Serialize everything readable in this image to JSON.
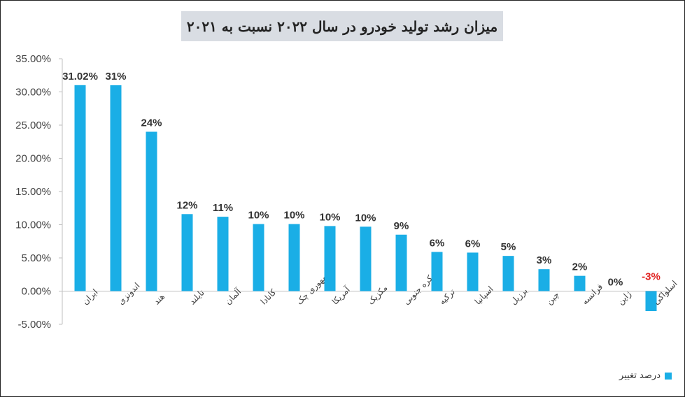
{
  "chart_data": {
    "type": "bar",
    "title": "میزان رشد تولید خودرو در سال ۲۰۲۲ نسبت به ۲۰۲۱",
    "categories": [
      "ایران",
      "اندونزی",
      "هند",
      "تایلند",
      "آلمان",
      "کانادا",
      "جمهوری چک",
      "آمریکا",
      "مکزیک",
      "کره جنوبی",
      "ترکیه",
      "اسپانیا",
      "برزیل",
      "چین",
      "فرانسه",
      "ژاپن",
      "اسلواکی"
    ],
    "series": [
      {
        "name": "درصد تغییر",
        "values": [
          31.02,
          31.0,
          24.0,
          11.6,
          11.2,
          10.1,
          10.1,
          9.8,
          9.7,
          8.5,
          5.9,
          5.8,
          5.3,
          3.3,
          2.3,
          0.0,
          -3.0
        ],
        "labels": [
          "31.02%",
          "31%",
          "24%",
          "12%",
          "11%",
          "10%",
          "10%",
          "10%",
          "10%",
          "9%",
          "6%",
          "6%",
          "5%",
          "3%",
          "2%",
          "0%",
          "-3%"
        ]
      }
    ],
    "ylim": [
      -5,
      35
    ],
    "yticks": [
      35,
      30,
      25,
      20,
      15,
      10,
      5,
      0,
      -5
    ],
    "ytick_labels": [
      "35.00%",
      "30.00%",
      "25.00%",
      "20.00%",
      "15.00%",
      "10.00%",
      "5.00%",
      "0.00%",
      "-5.00%"
    ],
    "grid": false,
    "legend": "bottom-right",
    "colors": {
      "bar": "#1aaee6",
      "negative_label": "#e0201f",
      "title_bg": "#d9dde3"
    }
  },
  "legend": {
    "label": "درصد تغییر"
  }
}
